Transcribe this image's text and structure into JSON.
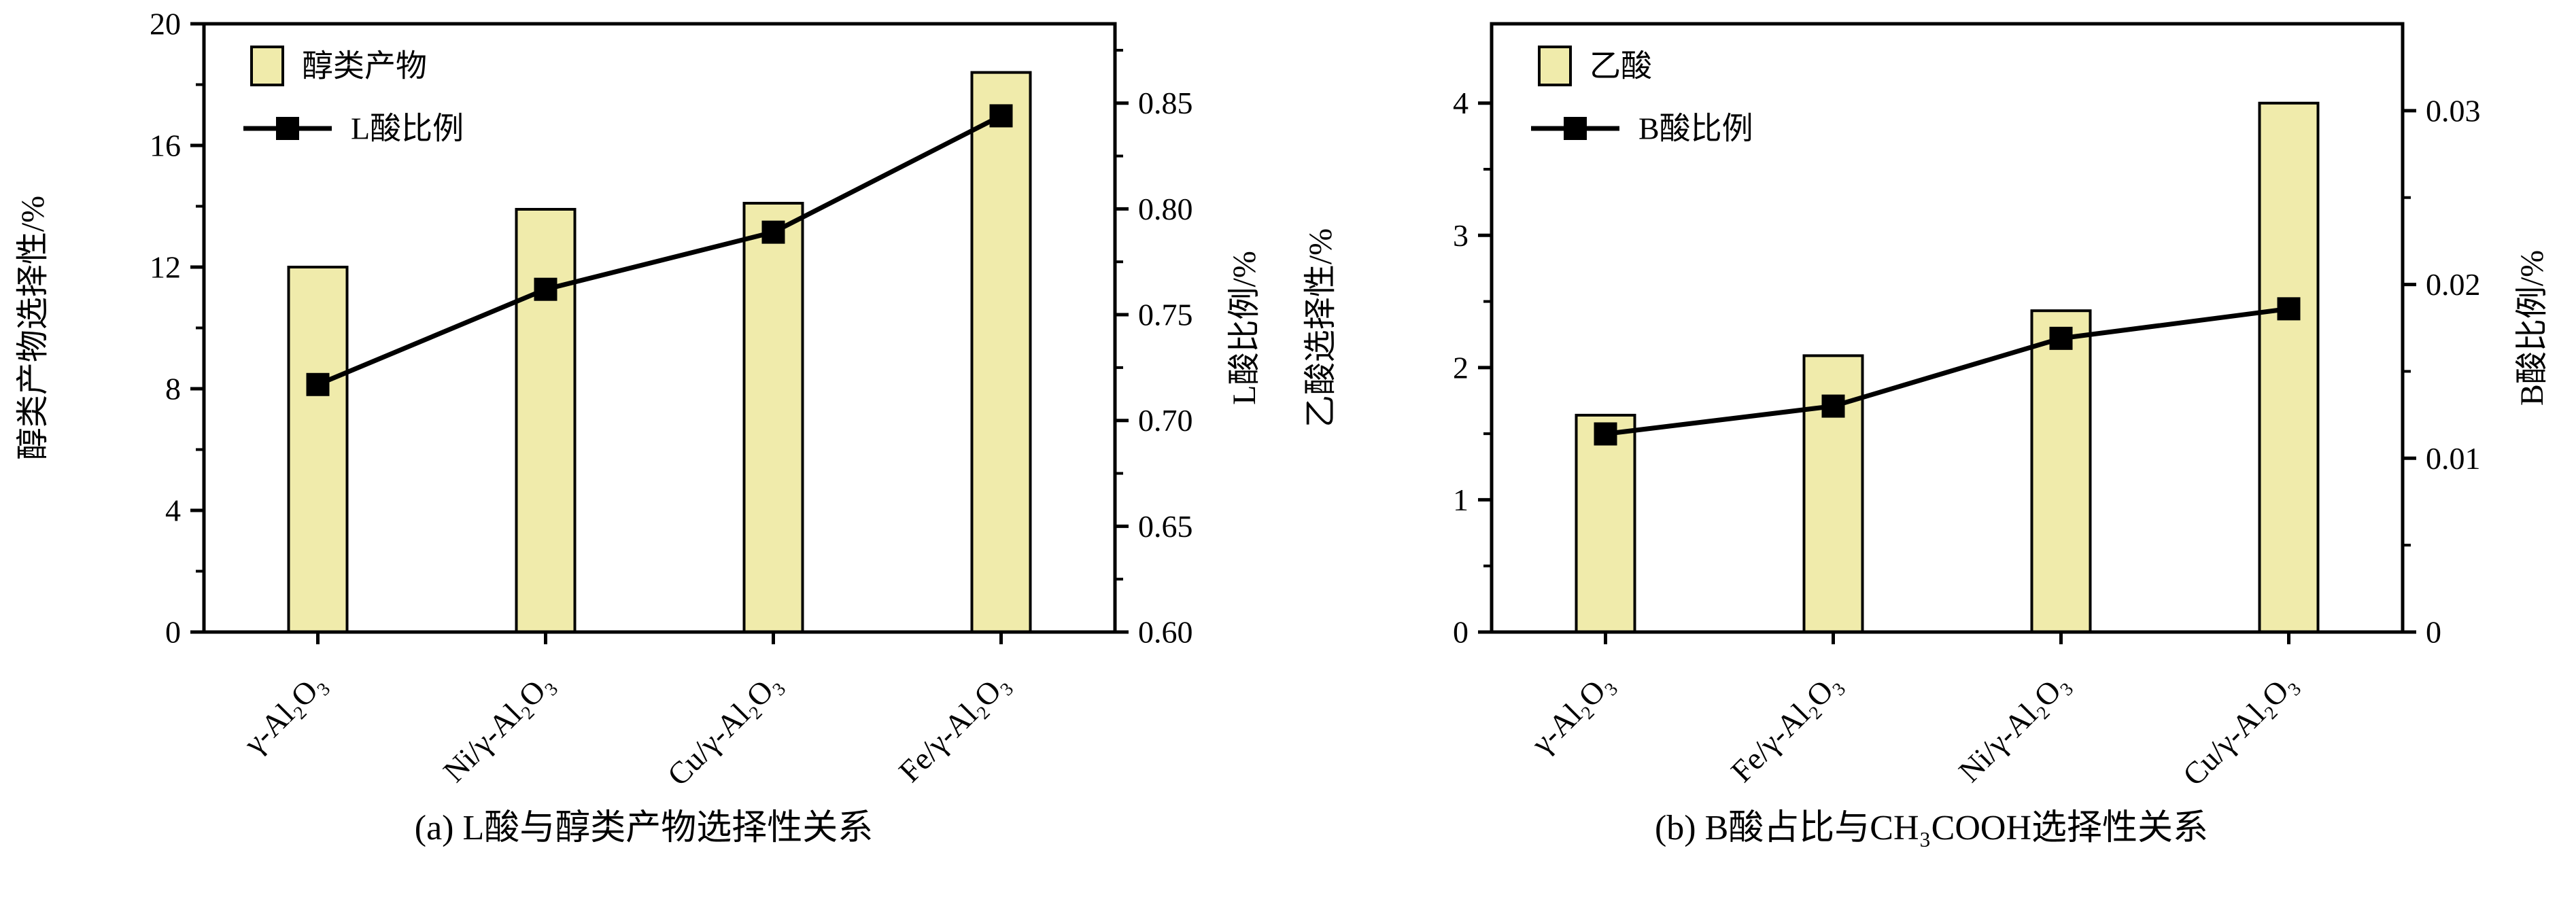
{
  "style": {
    "background": "#ffffff",
    "bar_fill": "#f0ebab",
    "stroke": "#000000",
    "text_color": "#000000"
  },
  "chart_data": [
    {
      "type": "bar+line",
      "title": "(a) L酸与醇类产物选择性关系",
      "categories": [
        "γ-Al₂O₃",
        "Ni/γ-Al₂O₃",
        "Cu/γ-Al₂O₃",
        "Fe/γ-Al₂O₃"
      ],
      "series": [
        {
          "name": "醇类产物",
          "type": "bar",
          "axis": "left",
          "values": [
            12.0,
            13.9,
            14.1,
            18.4
          ]
        },
        {
          "name": "L酸比例",
          "type": "line",
          "axis": "right",
          "values": [
            0.717,
            0.762,
            0.789,
            0.844
          ]
        }
      ],
      "left_axis": {
        "title": "醇类产物选择性/%",
        "min": 0,
        "max": 20,
        "major": [
          0,
          4,
          8,
          12,
          16,
          20
        ],
        "minor_step": 2,
        "decimals": 0
      },
      "right_axis": {
        "title": "L酸比例/%",
        "min": 0.6,
        "max": 0.8875,
        "major": [
          0.6,
          0.65,
          0.7,
          0.75,
          0.8,
          0.85
        ],
        "minor_step": 0.025,
        "decimals": 2
      },
      "legend_position": "top-left",
      "grid": false
    },
    {
      "type": "bar+line",
      "title": "(b) B酸占比与CH₃COOH选择性关系",
      "categories": [
        "γ-Al₂O₃",
        "Fe/γ-Al₂O₃",
        "Ni/γ-Al₂O₃",
        "Cu/γ-Al₂O₃"
      ],
      "series": [
        {
          "name": "乙酸",
          "type": "bar",
          "axis": "left",
          "values": [
            1.64,
            2.09,
            2.43,
            4.0
          ]
        },
        {
          "name": "B酸比例",
          "type": "line",
          "axis": "right",
          "values": [
            0.0114,
            0.013,
            0.0169,
            0.0186
          ]
        }
      ],
      "left_axis": {
        "title": "乙酸选择性/%",
        "min": 0,
        "max": 4.6,
        "major": [
          0,
          1,
          2,
          3,
          4
        ],
        "minor_step": 0.5,
        "decimals": 0
      },
      "right_axis": {
        "title": "B酸比例/%",
        "min": 0,
        "max": 0.035,
        "major": [
          0,
          0.01,
          0.02,
          0.03
        ],
        "minor_step": 0.005,
        "decimals": 2
      },
      "legend_position": "top-left",
      "grid": false
    }
  ]
}
